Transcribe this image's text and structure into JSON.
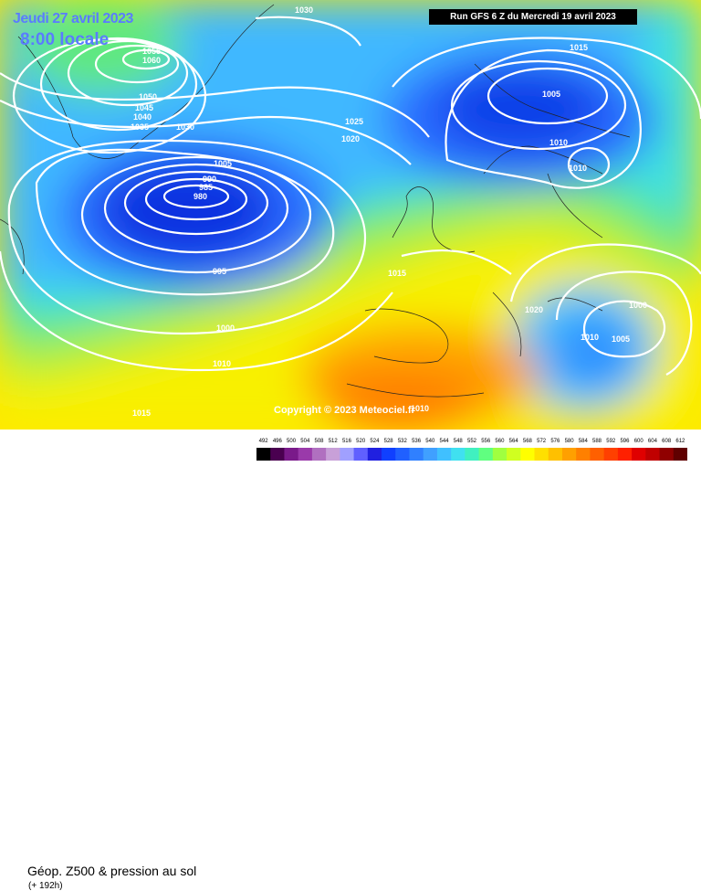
{
  "header": {
    "date_label": "Jeudi 27 avril 2023",
    "time_label": "8:00 locale",
    "run_label": "Run GFS 6 Z du Mercredi 19 avril 2023"
  },
  "map": {
    "copyright": "Copyright © 2023 Meteociel.fr",
    "isobar_labels": [
      "1030",
      "1055",
      "1060",
      "1050",
      "1045",
      "1040",
      "1035",
      "1030",
      "1025",
      "1020",
      "1015",
      "1005",
      "1010",
      "1010",
      "1005",
      "990",
      "985",
      "980",
      "995",
      "1000",
      "1010",
      "1015",
      "1015",
      "1020",
      "1000",
      "1010",
      "1005",
      "1010"
    ]
  },
  "legend": {
    "title": "Géop. Z500 & pression au sol",
    "forecast_hours": "(+ 192h)",
    "scale_values": [
      "492",
      "496",
      "500",
      "504",
      "508",
      "512",
      "516",
      "520",
      "524",
      "528",
      "532",
      "536",
      "540",
      "544",
      "548",
      "552",
      "556",
      "560",
      "564",
      "568",
      "572",
      "576",
      "580",
      "584",
      "588",
      "592",
      "596",
      "600",
      "604",
      "608",
      "612"
    ],
    "scale_colors": [
      "#000000",
      "#4a0050",
      "#7a1a8a",
      "#9a3aaa",
      "#b070c0",
      "#c8a0d8",
      "#a0a0ff",
      "#6060ff",
      "#2020e0",
      "#1040ff",
      "#2060ff",
      "#3080ff",
      "#40a0ff",
      "#40c0ff",
      "#40e0f0",
      "#40f0c0",
      "#60ff80",
      "#a0ff40",
      "#d0ff20",
      "#ffff00",
      "#ffe000",
      "#ffc000",
      "#ffa000",
      "#ff8000",
      "#ff6000",
      "#ff4000",
      "#ff2000",
      "#e00000",
      "#c00000",
      "#900000",
      "#600000"
    ]
  }
}
